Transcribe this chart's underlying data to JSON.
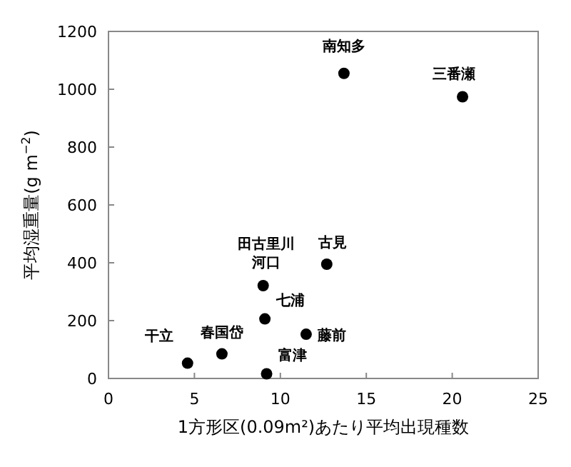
{
  "chart_data": {
    "type": "scatter",
    "xlabel": "1方形区(0.09m²)あたり平均出現種数",
    "ylabel": "平均湿重量(g m$^{−2}$)",
    "x": [
      4.6,
      6.6,
      9.0,
      9.1,
      9.2,
      11.5,
      12.7,
      13.7,
      20.6
    ],
    "series": [
      {
        "color": "#000000",
        "values": [
          53,
          85,
          321,
          206,
          16,
          153,
          395,
          1055,
          974
        ]
      }
    ],
    "marker": "circle",
    "xlim": [
      0,
      25
    ],
    "xticks": [
      0,
      5,
      10,
      15,
      20,
      25
    ],
    "ylim": [
      0,
      1200
    ],
    "yticks": [
      0,
      200,
      400,
      600,
      800,
      1000,
      1200
    ],
    "grid": false,
    "annotations": [
      {
        "text": "干立",
        "x": 4.6,
        "y": 53
      },
      {
        "text": "春国岱",
        "x": 6.6,
        "y": 85
      },
      {
        "text": "田古里川河口",
        "x": 9.0,
        "y": 321
      },
      {
        "text": "七浦",
        "x": 9.1,
        "y": 206
      },
      {
        "text": "富津",
        "x": 9.2,
        "y": 16
      },
      {
        "text": "藤前",
        "x": 11.5,
        "y": 153
      },
      {
        "text": "古見",
        "x": 12.7,
        "y": 395
      },
      {
        "text": "南知多",
        "x": 13.7,
        "y": 1055
      },
      {
        "text": "三番瀬",
        "x": 20.6,
        "y": 974
      }
    ]
  }
}
